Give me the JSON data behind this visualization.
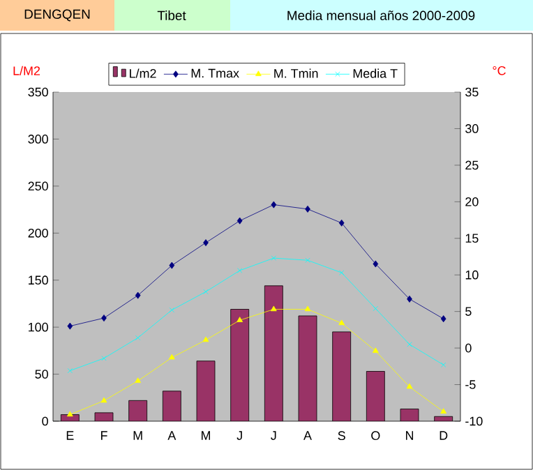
{
  "chart_data": {
    "type": "bar",
    "title": "DENGQEN",
    "subtitle": "Tibet",
    "annotations": [
      "Media mensual años 2000-2009"
    ],
    "ylabel": "L/M2",
    "y2label": "°C",
    "categories": [
      "E",
      "F",
      "M",
      "A",
      "M",
      "J",
      "J",
      "A",
      "S",
      "O",
      "N",
      "D"
    ],
    "series": [
      {
        "name": "L/m2",
        "color": "#993366",
        "values": [
          7,
          9,
          22,
          32,
          64,
          119,
          144,
          112,
          95,
          53,
          13,
          5
        ]
      },
      {
        "name": "M. Tmax",
        "type": "line",
        "axis": "y2",
        "marker": "diamond",
        "color": "#000080",
        "values": [
          3.0,
          4.1,
          7.2,
          11.3,
          14.4,
          17.4,
          19.6,
          19.0,
          17.1,
          11.5,
          6.7,
          4.0
        ]
      },
      {
        "name": "M. Tmin",
        "type": "line",
        "axis": "y2",
        "marker": "triangle",
        "color": "#ffff00",
        "values": [
          -9.1,
          -7.2,
          -4.5,
          -1.3,
          1.1,
          3.8,
          5.3,
          5.3,
          3.4,
          -0.4,
          -5.3,
          -8.7
        ]
      },
      {
        "name": "Media T",
        "type": "line",
        "axis": "y2",
        "marker": "cross",
        "color": "#00ffff",
        "values": [
          -3.1,
          -1.4,
          1.4,
          5.2,
          7.7,
          10.6,
          12.3,
          12.0,
          10.3,
          5.4,
          0.5,
          -2.3
        ]
      }
    ],
    "ylim": [
      0,
      350
    ],
    "yticks": [
      0,
      50,
      100,
      150,
      200,
      250,
      300,
      350
    ],
    "y2lim": [
      -10,
      35
    ],
    "y2ticks": [
      -10,
      -5,
      0,
      5,
      10,
      15,
      20,
      25,
      30,
      35
    ],
    "grid": false,
    "legend": "top"
  }
}
